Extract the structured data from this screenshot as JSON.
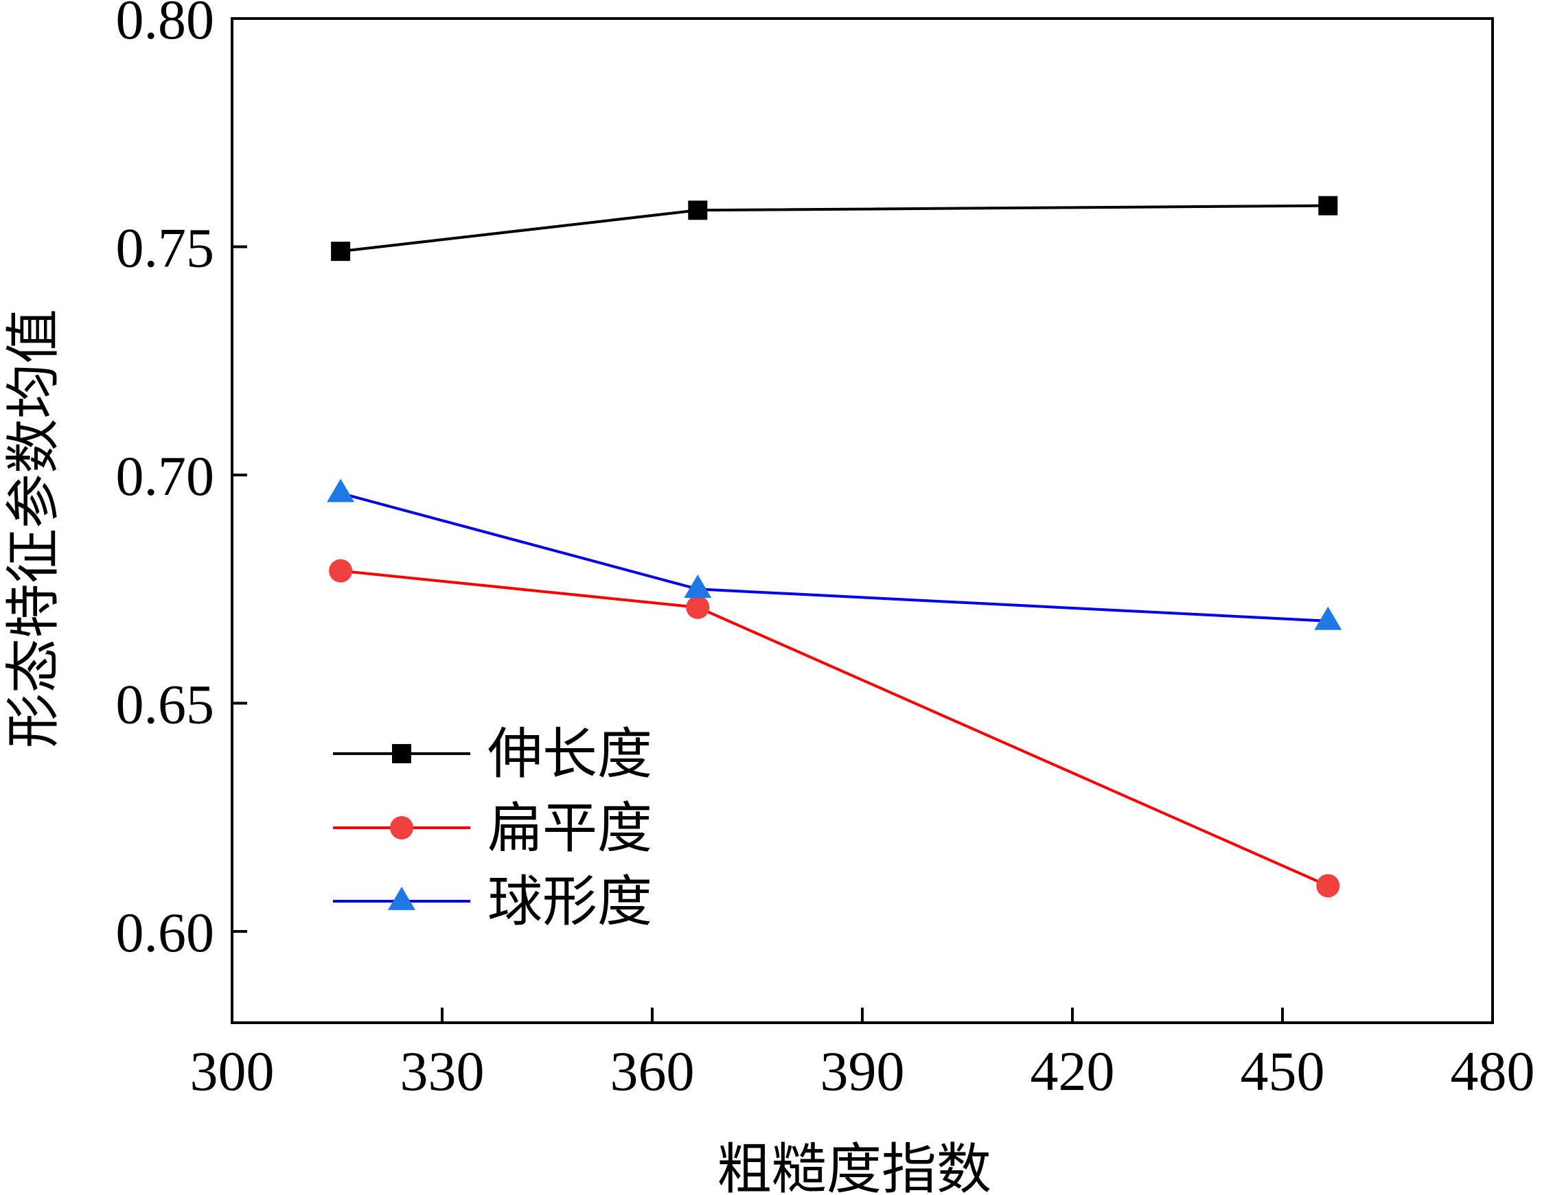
{
  "chart_data": {
    "type": "line",
    "xlabel": "粗糙度指数",
    "ylabel": "形态特征参数均值",
    "xlim": [
      300,
      480
    ],
    "ylim": [
      0.58,
      0.8
    ],
    "xticks": [
      300,
      330,
      360,
      390,
      420,
      450,
      480
    ],
    "xtick_labels": [
      "300",
      "330",
      "360",
      "390",
      "420",
      "450",
      "480"
    ],
    "yticks": [
      0.6,
      0.65,
      0.7,
      0.75,
      0.8
    ],
    "ytick_labels": [
      "0.60",
      "0.65",
      "0.70",
      "0.75",
      "0.80"
    ],
    "grid": false,
    "legend_position": "lower-left",
    "series": [
      {
        "name": "伸长度",
        "color": "#000000",
        "marker": "square",
        "x": [
          315.5,
          366.5,
          456.5
        ],
        "y": [
          0.749,
          0.758,
          0.759
        ]
      },
      {
        "name": "扁平度",
        "color": "#ff0000",
        "marker_color": "#f04040",
        "marker": "circle",
        "x": [
          315.5,
          366.5,
          456.5
        ],
        "y": [
          0.679,
          0.671,
          0.61
        ]
      },
      {
        "name": "球形度",
        "color": "#0000ee",
        "marker_color": "#1e78e6",
        "marker": "triangle",
        "x": [
          315.5,
          366.5,
          456.5
        ],
        "y": [
          0.696,
          0.675,
          0.668
        ]
      }
    ]
  }
}
